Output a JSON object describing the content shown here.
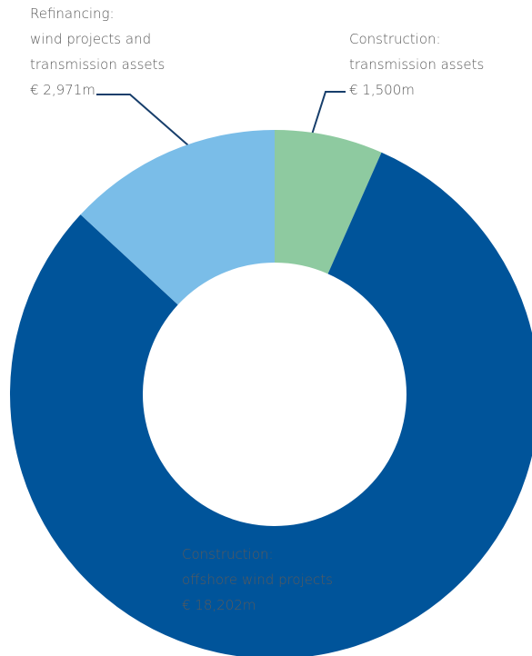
{
  "chart_data": {
    "type": "donut",
    "categories": [
      [
        "Construction:",
        "transmission assets"
      ],
      [
        "Construction:",
        "offshore wind projects"
      ],
      [
        "Refinancing:",
        "wind projects and",
        "transmission assets"
      ]
    ],
    "values": [
      1500,
      18202,
      2971
    ],
    "value_labels": [
      "€ 1,500m",
      "€ 18,202m",
      "€ 2,971m"
    ],
    "colors": [
      "#8ecaa0",
      "#00549a",
      "#7abde8"
    ]
  }
}
